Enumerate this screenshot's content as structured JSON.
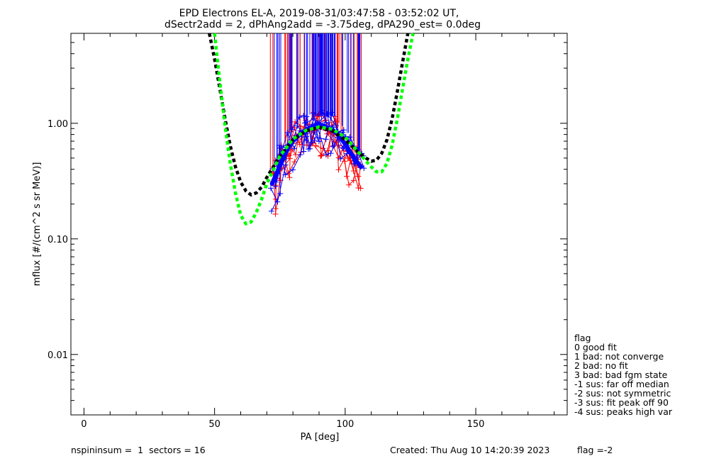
{
  "chart_data": {
    "type": "scatter",
    "title_line1": "EPD Electrons EL-A, 2019-08-31/03:47:58 - 03:52:02 UT,",
    "title_line2": "dSectr2add = 2, dPhAng2add = -3.75deg, dPA290_est=   0.0deg",
    "xlabel": "PA [deg]",
    "ylabel": "mflux [#/(cm^2 s sr MeV)]",
    "xlim": [
      -5,
      185
    ],
    "ylim": [
      0.003,
      6.0
    ],
    "x_ticks": [
      {
        "value": 0,
        "label": "0"
      },
      {
        "value": 50,
        "label": "50"
      },
      {
        "value": 100,
        "label": "100"
      },
      {
        "value": 150,
        "label": "150"
      }
    ],
    "y_ticks": [
      {
        "value": 0.01,
        "label": "0.01"
      },
      {
        "value": 0.1,
        "label": "0.10"
      },
      {
        "value": 1.0,
        "label": "1.00"
      }
    ],
    "series": [
      {
        "name": "spin profiles (red)",
        "color": "#ff0000",
        "x": [
          72,
          74,
          76,
          78,
          80,
          82,
          84,
          86,
          88,
          90,
          92,
          94,
          96,
          98,
          100,
          102,
          104,
          106
        ],
        "values": [
          0.28,
          0.35,
          0.45,
          0.55,
          0.65,
          0.72,
          0.8,
          0.85,
          0.9,
          0.92,
          0.9,
          0.86,
          0.8,
          0.72,
          0.62,
          0.52,
          0.45,
          0.4
        ]
      },
      {
        "name": "spin profiles (blue)",
        "color": "#0000ff",
        "x": [
          72,
          74,
          76,
          78,
          80,
          82,
          84,
          86,
          88,
          90,
          92,
          94,
          96,
          98,
          100,
          102,
          104,
          106
        ],
        "values": [
          0.3,
          0.38,
          0.48,
          0.6,
          0.7,
          0.78,
          0.85,
          0.9,
          0.95,
          0.97,
          0.95,
          0.9,
          0.85,
          0.76,
          0.66,
          0.56,
          0.48,
          0.42
        ]
      },
      {
        "name": "fit (black dashed)",
        "color": "#000000",
        "x": [
          48,
          50,
          52,
          54,
          56,
          58,
          60,
          62,
          64,
          66,
          68,
          70,
          75,
          80,
          85,
          90,
          95,
          100,
          105,
          108,
          110,
          112,
          114,
          116,
          118,
          120,
          122,
          124
        ],
        "values": [
          6.0,
          3.6,
          2.0,
          1.1,
          0.64,
          0.42,
          0.31,
          0.26,
          0.24,
          0.25,
          0.28,
          0.34,
          0.52,
          0.72,
          0.86,
          0.92,
          0.86,
          0.72,
          0.56,
          0.5,
          0.47,
          0.48,
          0.55,
          0.72,
          1.1,
          1.9,
          3.4,
          6.0
        ]
      },
      {
        "name": "fit (green dashed)",
        "color": "#00ff00",
        "x": [
          50,
          52,
          54,
          56,
          58,
          60,
          62,
          64,
          66,
          68,
          70,
          75,
          80,
          85,
          90,
          95,
          100,
          104,
          108,
          110,
          112,
          114,
          116,
          118,
          120,
          122,
          124,
          126
        ],
        "values": [
          6.0,
          2.3,
          0.95,
          0.45,
          0.25,
          0.16,
          0.135,
          0.14,
          0.17,
          0.22,
          0.3,
          0.52,
          0.73,
          0.87,
          0.93,
          0.89,
          0.76,
          0.6,
          0.47,
          0.42,
          0.38,
          0.38,
          0.45,
          0.65,
          1.1,
          2.0,
          3.6,
          6.0
        ]
      }
    ],
    "flag_legend": {
      "title": "flag",
      "items": [
        " 0 good fit",
        " 1 bad: not converge",
        " 2 bad: no fit",
        " 3 bad: bad fgm state",
        "-1 sus: far off median",
        "-2 sus: not symmetric",
        "-3 sus: fit peak off 90",
        "-4 sus: peaks high var"
      ]
    },
    "footer": {
      "left": "nspininsum =  1  sectors = 16",
      "created": "Created: Thu Aug 10 14:20:39 2023",
      "flag": "flag =-2"
    }
  }
}
